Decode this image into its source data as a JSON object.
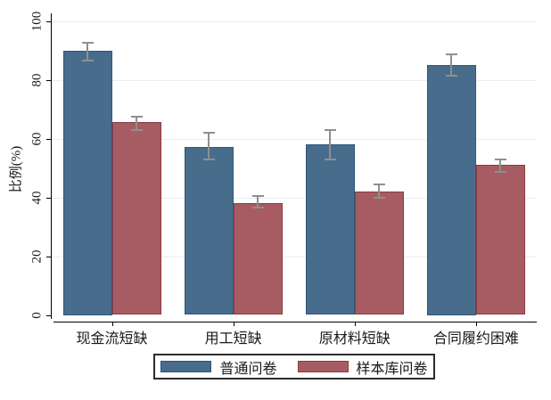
{
  "chart_data": {
    "type": "bar",
    "title": "",
    "ylabel": "比例(%)",
    "xlabel": "",
    "ylim": [
      0,
      100
    ],
    "yticks": [
      0,
      20,
      40,
      60,
      80,
      100
    ],
    "grid": true,
    "legend_position": "bottom-center",
    "error_bars": true,
    "categories": [
      "现金流短缺",
      "用工短缺",
      "原材料短缺",
      "合同履约困难"
    ],
    "series": [
      {
        "name": "普通问卷",
        "color": "#486C8C",
        "edge_color": "#2E5878",
        "values": [
          90,
          57,
          58,
          85
        ],
        "ci_low": [
          86.5,
          53,
          53,
          81.5
        ],
        "ci_high": [
          92.5,
          62,
          63,
          88.5
        ]
      },
      {
        "name": "样本库问卷",
        "color": "#A65C62",
        "edge_color": "#8C3A42",
        "values": [
          65.5,
          38,
          42,
          51
        ],
        "ci_low": [
          63,
          36.5,
          40,
          48.5
        ],
        "ci_high": [
          67.5,
          40.5,
          44.5,
          53
        ]
      }
    ],
    "colors": {
      "grid": "#e6eff2",
      "axis": "#000000",
      "error_bar": "#8f8f8f",
      "text": "#1a1a1a",
      "background": "#ffffff"
    }
  }
}
